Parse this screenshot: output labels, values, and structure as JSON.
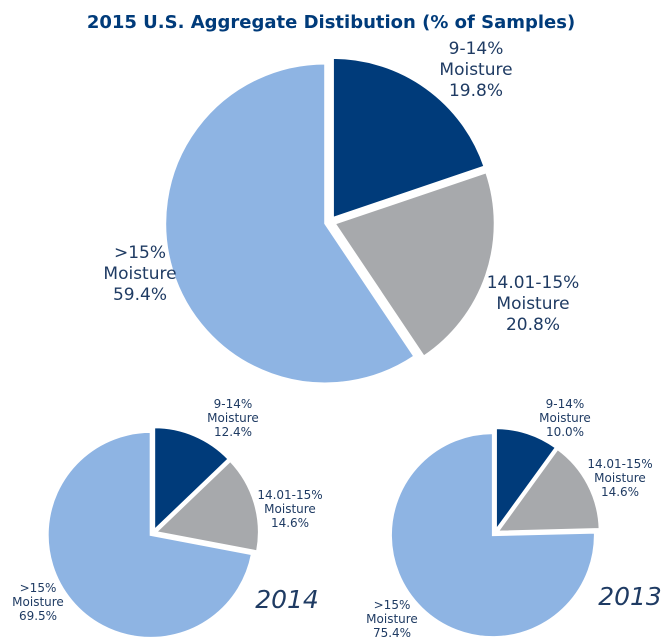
{
  "chart_data": [
    {
      "type": "pie",
      "title": "2015 U.S. Aggregate Distibution (% of Samples)",
      "categories": [
        "9-14% Moisture",
        "14.01-15% Moisture",
        ">15% Moisture"
      ],
      "values": [
        19.8,
        20.8,
        59.4
      ],
      "value_labels": [
        "19.8%",
        "20.8%",
        "59.4%"
      ],
      "colors": [
        "#003b7a",
        "#a7a9ac",
        "#8eb4e3"
      ]
    },
    {
      "type": "pie",
      "title": "2014",
      "categories": [
        "9-14% Moisture",
        "14.01-15% Moisture",
        ">15% Moisture"
      ],
      "values": [
        12.4,
        14.6,
        69.5
      ],
      "value_labels": [
        "12.4%",
        "14.6%",
        "69.5%"
      ],
      "colors": [
        "#003b7a",
        "#a7a9ac",
        "#8eb4e3"
      ]
    },
    {
      "type": "pie",
      "title": "2013",
      "categories": [
        "9-14% Moisture",
        "14.01-15% Moisture",
        ">15% Moisture"
      ],
      "values": [
        10.0,
        14.6,
        75.4
      ],
      "value_labels": [
        "10.0%",
        "14.6%",
        "75.4%"
      ],
      "colors": [
        "#003b7a",
        "#a7a9ac",
        "#8eb4e3"
      ]
    }
  ]
}
